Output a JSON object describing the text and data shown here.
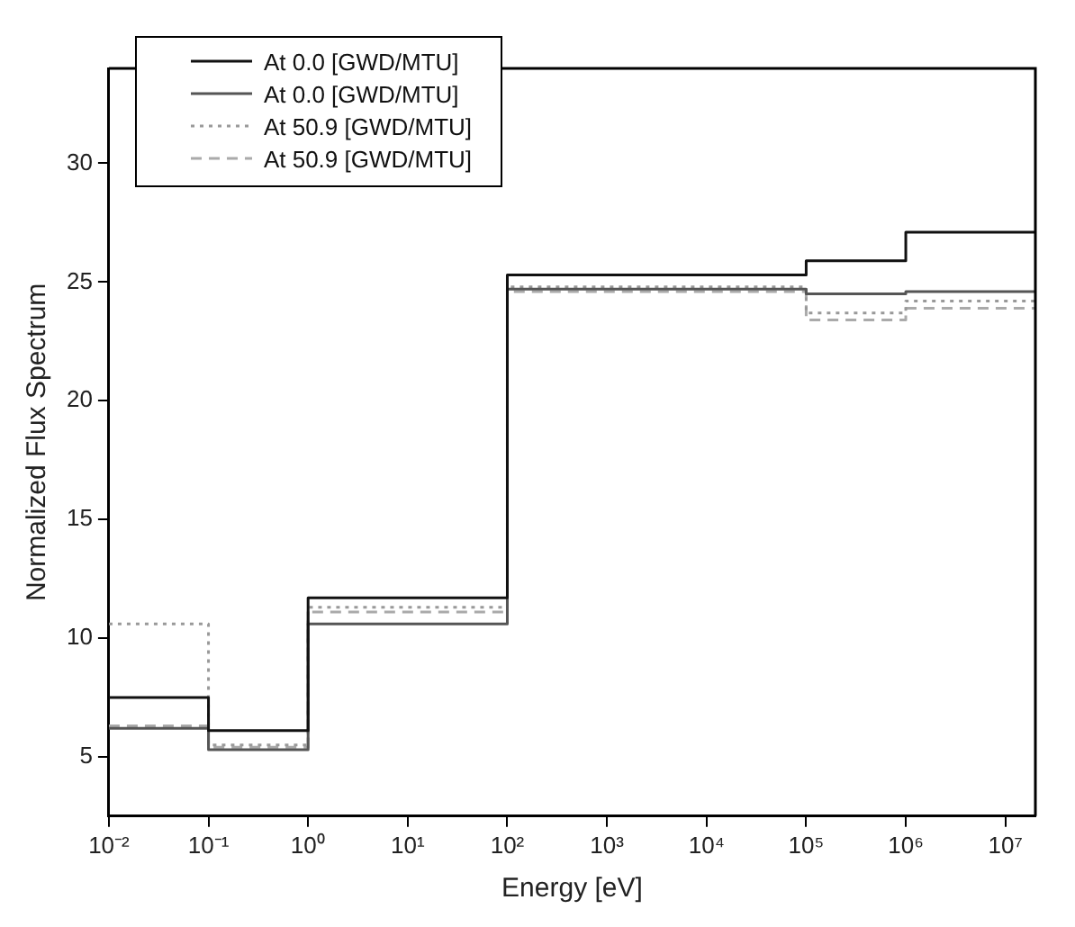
{
  "chart_data": {
    "type": "step",
    "xlabel": "Energy [eV]",
    "ylabel": "Normalized Flux Spectrum",
    "log": "x",
    "grid": false,
    "legend": "top left",
    "x": [
      0.01,
      0.1,
      1,
      100,
      100000,
      1000000,
      20000000
    ],
    "xlim": [
      0.01,
      20000000
    ],
    "xticks": [
      {
        "value": 0.01,
        "label": "10⁻²"
      },
      {
        "value": 0.1,
        "label": "10⁻¹"
      },
      {
        "value": 1,
        "label": "10⁰"
      },
      {
        "value": 10,
        "label": "10¹"
      },
      {
        "value": 100,
        "label": "10²"
      },
      {
        "value": 1000,
        "label": "10³"
      },
      {
        "value": 10000,
        "label": "10⁴"
      },
      {
        "value": 100000,
        "label": "10⁵"
      },
      {
        "value": 1000000,
        "label": "10⁶"
      },
      {
        "value": 10000000,
        "label": "10⁷"
      }
    ],
    "ylim": [
      2.5,
      34
    ],
    "yticks": [
      5,
      10,
      15,
      20,
      25,
      30
    ],
    "series": [
      {
        "name": "At 0.0 [GWD/MTU]",
        "color": "#111111",
        "line_style": "solid",
        "values": [
          7.5,
          6.1,
          11.7,
          25.3,
          25.9,
          27.1,
          27.1
        ]
      },
      {
        "name": "At 0.0 [GWD/MTU]",
        "color": "#555555",
        "line_style": "solid",
        "values": [
          6.2,
          5.3,
          10.6,
          24.7,
          24.5,
          24.6,
          24.6
        ]
      },
      {
        "name": "At 50.9 [GWD/MTU]",
        "color": "#999999",
        "line_style": "dotted",
        "values": [
          10.6,
          5.5,
          11.3,
          24.8,
          23.7,
          24.2,
          24.2
        ]
      },
      {
        "name": "At 50.9 [GWD/MTU]",
        "color": "#aaaaaa",
        "line_style": "dashed",
        "values": [
          6.3,
          5.4,
          11.1,
          24.6,
          23.4,
          23.9,
          23.9
        ]
      }
    ]
  }
}
